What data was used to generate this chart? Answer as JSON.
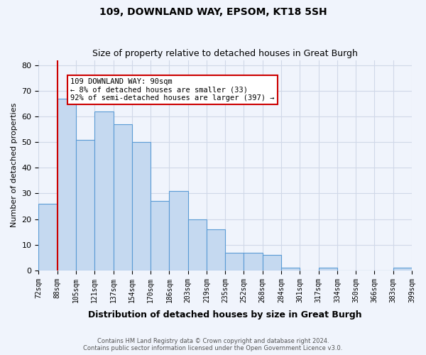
{
  "title": "109, DOWNLAND WAY, EPSOM, KT18 5SH",
  "subtitle": "Size of property relative to detached houses in Great Burgh",
  "xlabel": "Distribution of detached houses by size in Great Burgh",
  "ylabel": "Number of detached properties",
  "bin_labels": [
    "72sqm",
    "88sqm",
    "105sqm",
    "121sqm",
    "137sqm",
    "154sqm",
    "170sqm",
    "186sqm",
    "203sqm",
    "219sqm",
    "235sqm",
    "252sqm",
    "268sqm",
    "284sqm",
    "301sqm",
    "317sqm",
    "334sqm",
    "350sqm",
    "366sqm",
    "383sqm",
    "399sqm"
  ],
  "bar_values": [
    26,
    67,
    51,
    62,
    57,
    50,
    27,
    31,
    20,
    16,
    7,
    7,
    6,
    1,
    0,
    1,
    0,
    0,
    0,
    1
  ],
  "bar_color": "#c5d9f0",
  "bar_edge_color": "#5a9bd5",
  "grid_color": "#d0d8e8",
  "background_color": "#f0f4fc",
  "vline_x": 1,
  "vline_color": "#cc0000",
  "annotation_text": "109 DOWNLAND WAY: 90sqm\n← 8% of detached houses are smaller (33)\n92% of semi-detached houses are larger (397) →",
  "annotation_box_color": "#ffffff",
  "annotation_box_edge": "#cc0000",
  "footer_line1": "Contains HM Land Registry data © Crown copyright and database right 2024.",
  "footer_line2": "Contains public sector information licensed under the Open Government Licence v3.0.",
  "ylim": [
    0,
    82
  ],
  "yticks": [
    0,
    10,
    20,
    30,
    40,
    50,
    60,
    70,
    80
  ]
}
